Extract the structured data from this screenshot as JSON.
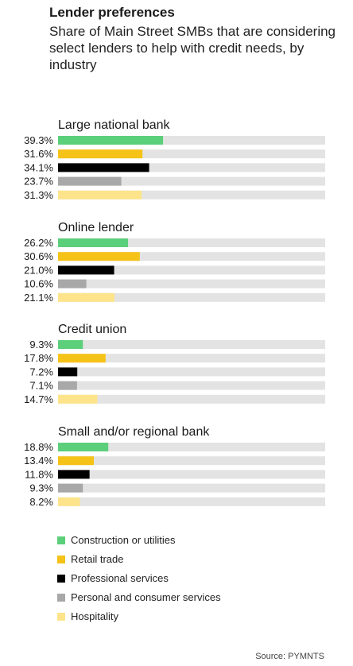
{
  "title": "Lender preferences",
  "subtitle": "Share of Main Street SMBs that are considering select lenders to help with credit needs, by industry",
  "source": "Source: PYMNTS",
  "colors": {
    "track": "#e3e3e3",
    "Construction or utilities": "#5ccf7a",
    "Retail trade": "#f5c218",
    "Professional services": "#000000",
    "Personal and consumer services": "#a8a8a8",
    "Hospitality": "#fde48a"
  },
  "chart_data": {
    "type": "bar",
    "orientation": "horizontal",
    "xlim": [
      0,
      100
    ],
    "series_names": [
      "Construction or utilities",
      "Retail trade",
      "Professional services",
      "Personal and consumer services",
      "Hospitality"
    ],
    "groups": [
      {
        "name": "Large national bank",
        "values": [
          39.3,
          31.6,
          34.1,
          23.7,
          31.3
        ],
        "labels": [
          "39.3%",
          "31.6%",
          "34.1%",
          "23.7%",
          "31.3%"
        ]
      },
      {
        "name": "Online lender",
        "values": [
          26.2,
          30.6,
          21.0,
          10.6,
          21.1
        ],
        "labels": [
          "26.2%",
          "30.6%",
          "21.0%",
          "10.6%",
          "21.1%"
        ]
      },
      {
        "name": "Credit union",
        "values": [
          9.3,
          17.8,
          7.2,
          7.1,
          14.7
        ],
        "labels": [
          "9.3%",
          "17.8%",
          "7.2%",
          "7.1%",
          "14.7%"
        ]
      },
      {
        "name": "Small and/or regional bank",
        "values": [
          18.8,
          13.4,
          11.8,
          9.3,
          8.2
        ],
        "labels": [
          "18.8%",
          "13.4%",
          "11.8%",
          "9.3%",
          "8.2%"
        ]
      }
    ],
    "legend": [
      "Construction or utilities",
      "Retail trade",
      "Professional services",
      "Personal and consumer services",
      "Hospitality"
    ],
    "legend_position": "bottom"
  }
}
